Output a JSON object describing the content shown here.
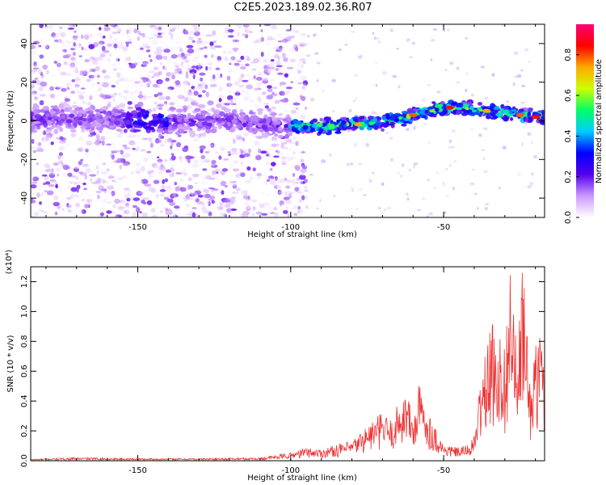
{
  "title": "C2E5.2023.189.02.36.R07",
  "chart_data": [
    {
      "type": "heatmap",
      "xlabel": "Height of straight line (km)",
      "ylabel": "Frequency (Hz)",
      "xlim": [
        -185,
        -17
      ],
      "ylim": [
        -50,
        50
      ],
      "xticks": [
        -150,
        -100,
        -50
      ],
      "xtick_labels": [
        "-150",
        "-100",
        "-50"
      ],
      "yticks": [
        -40,
        -20,
        0,
        20,
        40
      ],
      "ytick_labels": [
        "-40",
        "-20",
        "0",
        "20",
        "40"
      ],
      "colorbar": {
        "label": "Normalized spectral amplitude",
        "range": [
          0.0,
          0.95
        ],
        "ticks": [
          0.0,
          0.2,
          0.4,
          0.6,
          0.8
        ],
        "tick_labels": [
          "0.0",
          "0.2",
          "0.4",
          "0.6",
          "0.8"
        ],
        "colormap": [
          "#ffffff",
          "#cc99ff",
          "#5500ee",
          "#0000ff",
          "#00ccff",
          "#00ff66",
          "#ccff00",
          "#ffaa00",
          "#ff0000",
          "#ff0077"
        ]
      },
      "ridge": {
        "x": [
          -185,
          -160,
          -140,
          -120,
          -100,
          -90,
          -80,
          -70,
          -60,
          -50,
          -40,
          -30,
          -20,
          -17
        ],
        "y": [
          1,
          1,
          0,
          0,
          -3,
          -3,
          -2,
          -1,
          3,
          7,
          6,
          4,
          2,
          2
        ]
      },
      "grid": false
    },
    {
      "type": "line",
      "xlabel": "Height of straight line (km)",
      "ylabel": "SNR (10 * v/v)",
      "yscale_label": "(x10⁴)",
      "xlim": [
        -185,
        -17
      ],
      "ylim": [
        0,
        1.3
      ],
      "xticks": [
        -150,
        -100,
        -50
      ],
      "xtick_labels": [
        "-150",
        "-100",
        "-50"
      ],
      "yticks": [
        0.0,
        0.2,
        0.4,
        0.6,
        0.8,
        1.0,
        1.2
      ],
      "ytick_labels": [
        "0.0",
        "0.2",
        "0.4",
        "0.6",
        "0.8",
        "1.0",
        "1.2"
      ],
      "series": [
        {
          "color": "#ee3333",
          "x": [
            -185,
            -170,
            -150,
            -130,
            -110,
            -100,
            -95,
            -90,
            -85,
            -80,
            -75,
            -70,
            -67,
            -65,
            -62,
            -60,
            -58,
            -55,
            -50,
            -45,
            -42,
            -40,
            -38,
            -36,
            -34,
            -32,
            -30,
            -28,
            -26,
            -24,
            -22,
            -20,
            -18,
            -17
          ],
          "y": [
            0.01,
            0.02,
            0.015,
            0.015,
            0.02,
            0.05,
            0.08,
            0.07,
            0.1,
            0.12,
            0.22,
            0.3,
            0.25,
            0.35,
            0.45,
            0.25,
            0.48,
            0.3,
            0.1,
            0.08,
            0.1,
            0.15,
            0.5,
            0.7,
            0.85,
            0.8,
            0.7,
            1.28,
            0.6,
            1.28,
            0.5,
            0.7,
            0.85,
            0.7
          ]
        }
      ],
      "grid": false
    }
  ]
}
